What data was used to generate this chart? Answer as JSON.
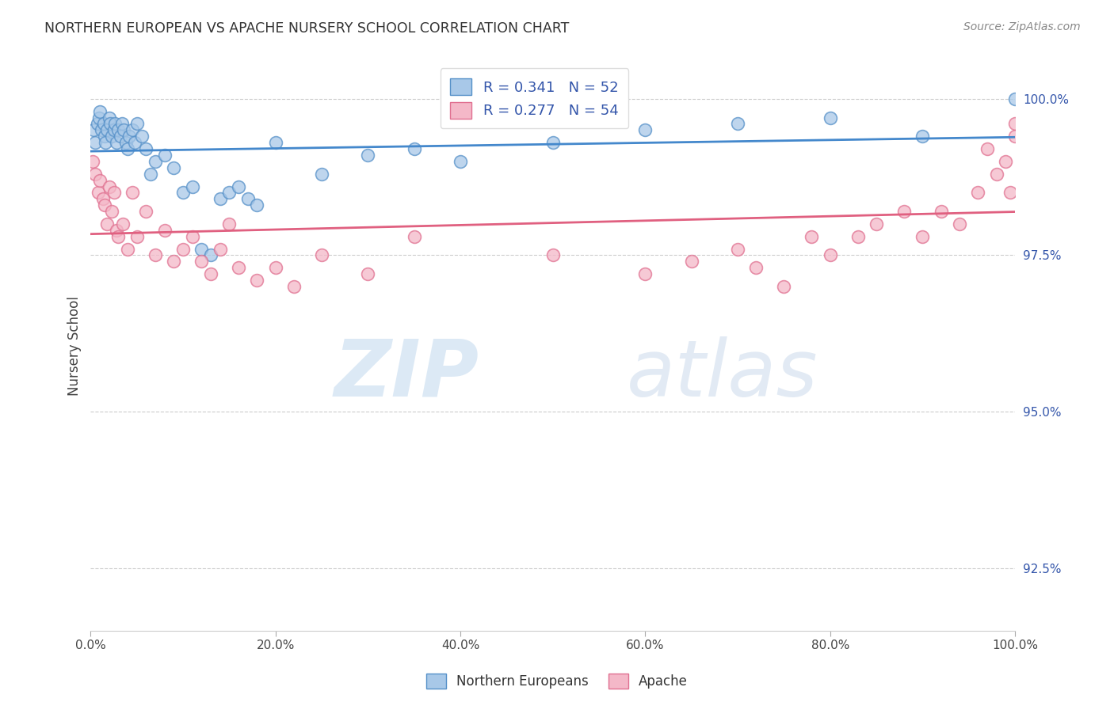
{
  "title": "NORTHERN EUROPEAN VS APACHE NURSERY SCHOOL CORRELATION CHART",
  "source_text": "Source: ZipAtlas.com",
  "ylabel": "Nursery School",
  "watermark_zip": "ZIP",
  "watermark_atlas": "atlas",
  "legend_label_1": "Northern Europeans",
  "legend_label_2": "Apache",
  "r1": 0.341,
  "n1": 52,
  "r2": 0.277,
  "n2": 54,
  "color_blue": "#a8c8e8",
  "color_pink": "#f4b8c8",
  "edge_color_blue": "#5590c8",
  "edge_color_pink": "#e07090",
  "line_color_blue": "#4488cc",
  "line_color_pink": "#e06080",
  "xmin": 0.0,
  "xmax": 100.0,
  "ymin": 91.5,
  "ymax": 100.6,
  "yticks": [
    92.5,
    95.0,
    97.5,
    100.0
  ],
  "xticks": [
    0.0,
    20.0,
    40.0,
    60.0,
    80.0,
    100.0
  ],
  "ne_x": [
    0.3,
    0.5,
    0.7,
    0.9,
    1.0,
    1.2,
    1.4,
    1.5,
    1.6,
    1.8,
    2.0,
    2.1,
    2.3,
    2.5,
    2.6,
    2.8,
    3.0,
    3.2,
    3.4,
    3.6,
    3.8,
    4.0,
    4.2,
    4.5,
    4.8,
    5.0,
    5.5,
    6.0,
    6.5,
    7.0,
    8.0,
    9.0,
    10.0,
    11.0,
    12.0,
    13.0,
    14.0,
    15.0,
    16.0,
    17.0,
    18.0,
    20.0,
    25.0,
    30.0,
    35.0,
    40.0,
    50.0,
    60.0,
    70.0,
    80.0,
    90.0,
    100.0
  ],
  "ne_y": [
    99.5,
    99.3,
    99.6,
    99.7,
    99.8,
    99.5,
    99.6,
    99.4,
    99.3,
    99.5,
    99.7,
    99.6,
    99.4,
    99.5,
    99.6,
    99.3,
    99.5,
    99.4,
    99.6,
    99.5,
    99.3,
    99.2,
    99.4,
    99.5,
    99.3,
    99.6,
    99.4,
    99.2,
    98.8,
    99.0,
    99.1,
    98.9,
    98.5,
    98.6,
    97.6,
    97.5,
    98.4,
    98.5,
    98.6,
    98.4,
    98.3,
    99.3,
    98.8,
    99.1,
    99.2,
    99.0,
    99.3,
    99.5,
    99.6,
    99.7,
    99.4,
    100.0
  ],
  "ap_x": [
    0.2,
    0.5,
    0.8,
    1.0,
    1.3,
    1.5,
    1.8,
    2.0,
    2.3,
    2.5,
    2.8,
    3.0,
    3.5,
    4.0,
    4.5,
    5.0,
    6.0,
    7.0,
    8.0,
    9.0,
    10.0,
    11.0,
    12.0,
    13.0,
    14.0,
    15.0,
    16.0,
    18.0,
    20.0,
    22.0,
    25.0,
    30.0,
    35.0,
    50.0,
    60.0,
    65.0,
    70.0,
    72.0,
    75.0,
    78.0,
    80.0,
    83.0,
    85.0,
    88.0,
    90.0,
    92.0,
    94.0,
    96.0,
    97.0,
    98.0,
    99.0,
    99.5,
    100.0,
    100.0
  ],
  "ap_y": [
    99.0,
    98.8,
    98.5,
    98.7,
    98.4,
    98.3,
    98.0,
    98.6,
    98.2,
    98.5,
    97.9,
    97.8,
    98.0,
    97.6,
    98.5,
    97.8,
    98.2,
    97.5,
    97.9,
    97.4,
    97.6,
    97.8,
    97.4,
    97.2,
    97.6,
    98.0,
    97.3,
    97.1,
    97.3,
    97.0,
    97.5,
    97.2,
    97.8,
    97.5,
    97.2,
    97.4,
    97.6,
    97.3,
    97.0,
    97.8,
    97.5,
    97.8,
    98.0,
    98.2,
    97.8,
    98.2,
    98.0,
    98.5,
    99.2,
    98.8,
    99.0,
    98.5,
    99.4,
    99.6
  ]
}
